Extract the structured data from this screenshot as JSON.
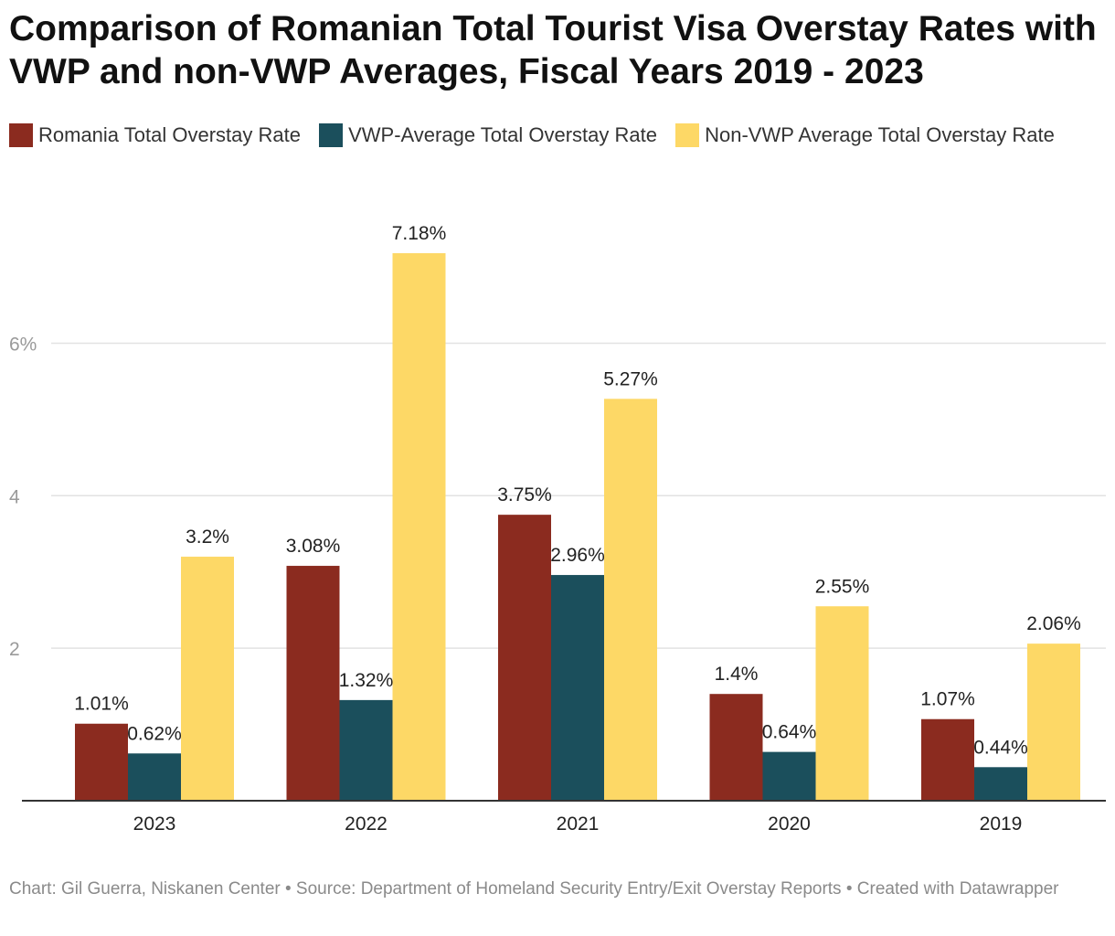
{
  "chart_data": {
    "type": "bar",
    "title": "Comparison of Romanian Total Tourist Visa Overstay Rates with VWP and non-VWP Averages, Fiscal Years 2019 - 2023",
    "categories": [
      "2023",
      "2022",
      "2021",
      "2020",
      "2019"
    ],
    "series": [
      {
        "name": "Romania Total Overstay Rate",
        "color": "#8b2b1f",
        "values": [
          1.01,
          3.08,
          3.75,
          1.4,
          1.07
        ],
        "labels": [
          "1.01%",
          "3.08%",
          "3.75%",
          "1.4%",
          "1.07%"
        ]
      },
      {
        "name": "VWP-Average Total Overstay Rate",
        "color": "#1b4f5c",
        "values": [
          0.62,
          1.32,
          2.96,
          0.64,
          0.44
        ],
        "labels": [
          "0.62%",
          "1.32%",
          "2.96%",
          "0.64%",
          "0.44%"
        ]
      },
      {
        "name": "Non-VWP Average Total Overstay Rate",
        "color": "#fdd866",
        "values": [
          3.2,
          7.18,
          5.27,
          2.55,
          2.06
        ],
        "labels": [
          "3.2%",
          "7.18%",
          "5.27%",
          "2.55%",
          "2.06%"
        ]
      }
    ],
    "y_ticks": [
      {
        "value": 2,
        "label": "2"
      },
      {
        "value": 4,
        "label": "4"
      },
      {
        "value": 6,
        "label": "6%"
      }
    ],
    "ylim": [
      0,
      7.18
    ],
    "xlabel": "",
    "ylabel": "",
    "grid": true,
    "legend": "top-left"
  },
  "footer": {
    "text": "Chart: Gil Guerra, Niskanen Center • Source: Department of Homeland Security Entry/Exit Overstay Reports • Created with Datawrapper"
  }
}
